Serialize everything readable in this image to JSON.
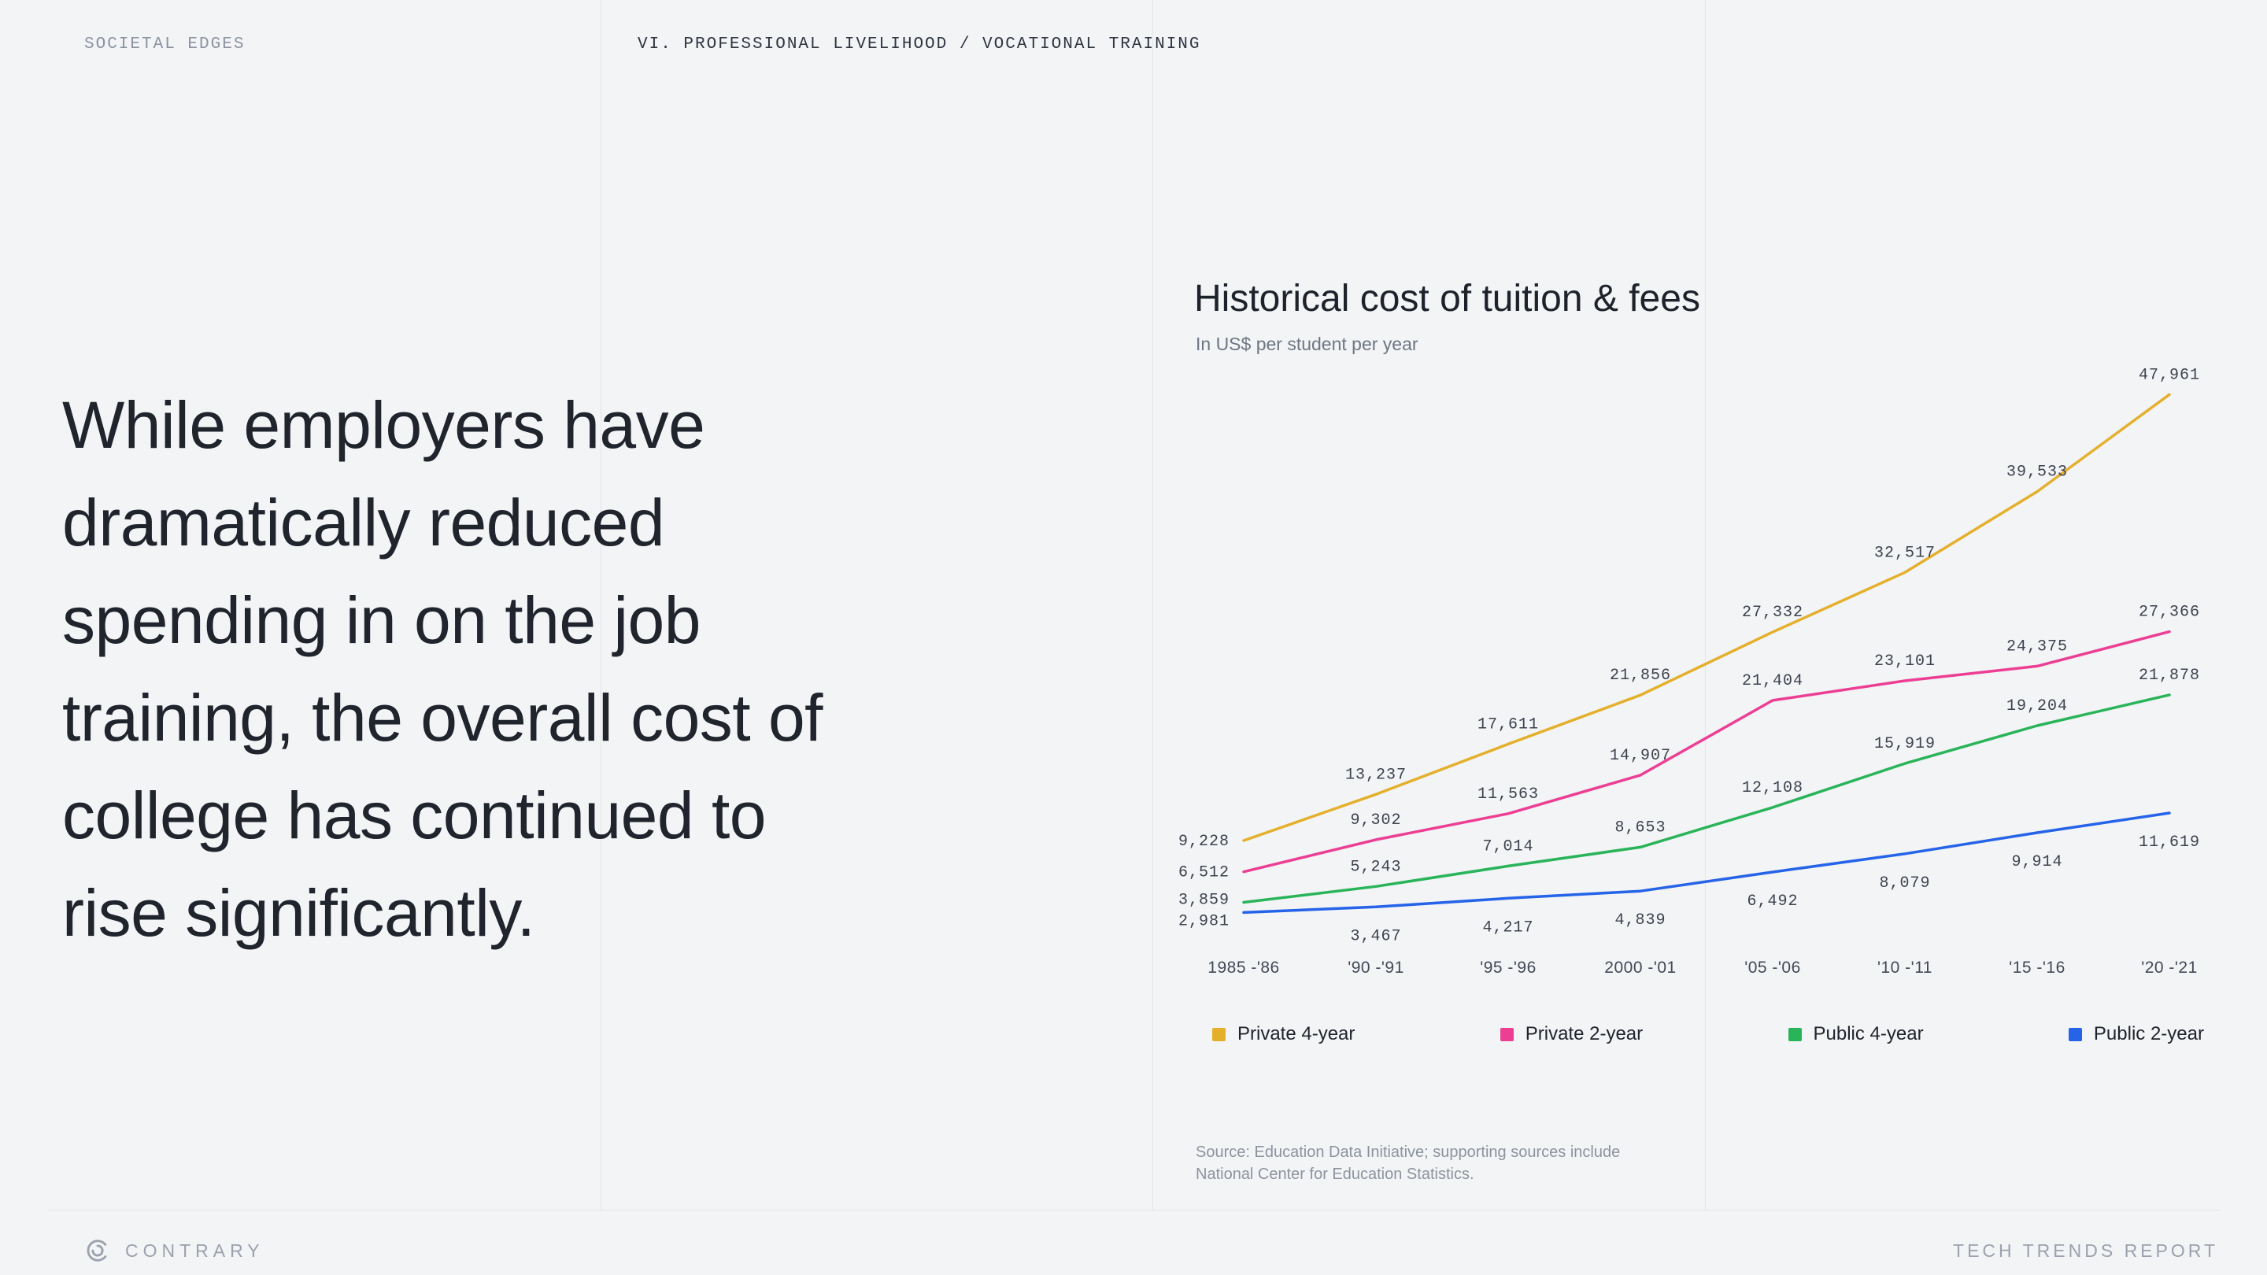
{
  "page": {
    "kicker": "SOCIETAL EDGES",
    "section_title": "VI. PROFESSIONAL LIVELIHOOD / VOCATIONAL TRAINING",
    "quote": "While employers have dramatically reduced spending in on the job training, the overall cost of college has continued to rise significantly."
  },
  "footer": {
    "brand": "CONTRARY",
    "report": "TECH TRENDS REPORT"
  },
  "theme": {
    "background": "#f3f4f6",
    "hairline": "#e4e5e9",
    "text_primary": "#20242c",
    "text_muted": "#8b92a0"
  },
  "chart_data": {
    "type": "line",
    "title": "Historical cost of tuition & fees",
    "subtitle": "In US$ per student per year",
    "categories": [
      "1985 -'86",
      "'90 -'91",
      "'95 -'96",
      "2000 -'01",
      "'05 -'06",
      "'10 -'11",
      "'15 -'16",
      "'20 -'21"
    ],
    "series": [
      {
        "name": "Private 4-year",
        "color": "#E4B02C",
        "label_position": "above",
        "values": [
          9228,
          13237,
          17611,
          21856,
          27332,
          32517,
          39533,
          47961
        ]
      },
      {
        "name": "Private 2-year",
        "color": "#EC3F94",
        "label_position": "above",
        "values": [
          6512,
          9302,
          11563,
          14907,
          21404,
          23101,
          24375,
          27366
        ]
      },
      {
        "name": "Public 4-year",
        "color": "#2AB45A",
        "label_position": "above",
        "values": [
          3859,
          5243,
          7014,
          8653,
          12108,
          15919,
          19204,
          21878
        ]
      },
      {
        "name": "Public 2-year",
        "color": "#2563E8",
        "label_position": "below",
        "values": [
          2981,
          3467,
          4217,
          4839,
          6492,
          8079,
          9914,
          11619
        ]
      }
    ],
    "ylim": [
      0,
      50000
    ],
    "grid": false,
    "legend_position": "bottom",
    "source": "Source: Education Data Initiative; supporting sources include National Center for Education Statistics."
  }
}
